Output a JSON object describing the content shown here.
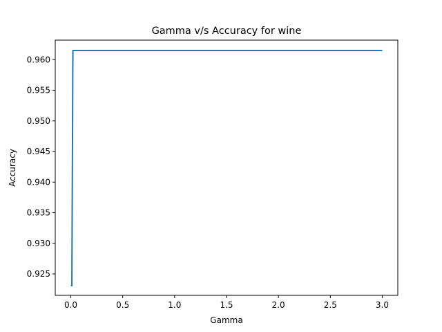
{
  "chart_data": {
    "type": "line",
    "title": "Gamma v/s Accuracy for wine",
    "xlabel": "Gamma",
    "ylabel": "Accuracy",
    "xlim": [
      -0.15,
      3.15
    ],
    "ylim": [
      0.9215,
      0.9632
    ],
    "xticks": [
      0,
      0.5,
      1,
      1.5,
      2,
      2.5,
      3
    ],
    "xtick_labels": [
      "0.0",
      "0.5",
      "1.0",
      "1.5",
      "2.0",
      "2.5",
      "3.0"
    ],
    "yticks": [
      0.925,
      0.93,
      0.935,
      0.94,
      0.945,
      0.95,
      0.955,
      0.96
    ],
    "ytick_labels": [
      "0.925",
      "0.930",
      "0.935",
      "0.940",
      "0.945",
      "0.950",
      "0.955",
      "0.960"
    ],
    "grid": false,
    "legend": "none",
    "series": [
      {
        "color": "#1f77b4",
        "x": [
          0.0,
          0.01,
          0.02,
          3.0
        ],
        "y": [
          0.9231,
          0.9231,
          0.9615,
          0.9615
        ]
      }
    ]
  }
}
